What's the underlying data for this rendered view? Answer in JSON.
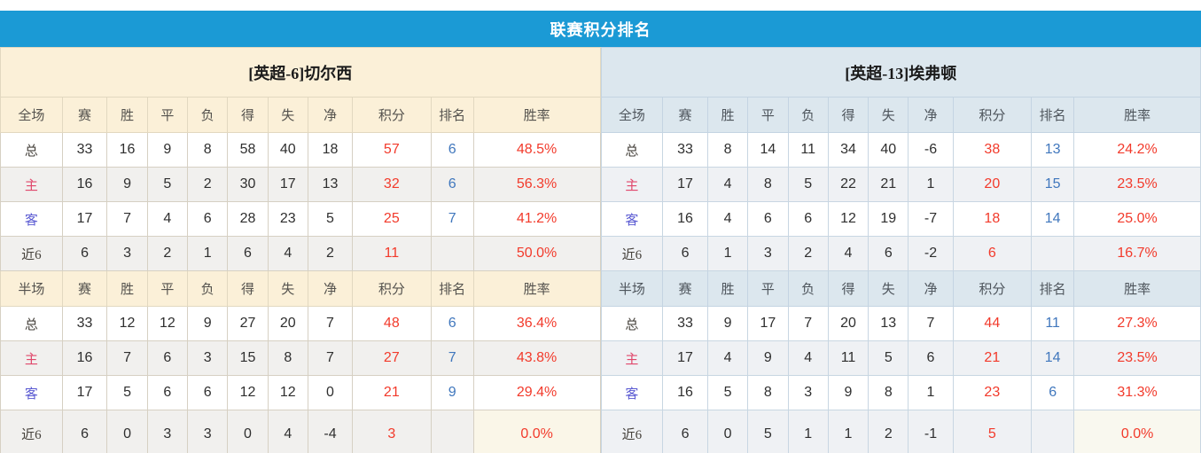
{
  "title": "联赛积分排名",
  "columns": [
    "赛",
    "胜",
    "平",
    "负",
    "得",
    "失",
    "净",
    "积分",
    "排名",
    "胜率"
  ],
  "colors": {
    "accent_blue": "#1b9ad5",
    "left_team_header_bg": "#fbf0d8",
    "right_team_header_bg": "#dce7ee",
    "points_red": "#f23a2b",
    "rank_blue": "#4077bd",
    "home_label_red": "#e0476b",
    "away_label_blue": "#5a5ad2"
  },
  "teams": [
    {
      "name": "[英超-6]切尔西",
      "sections": [
        {
          "title": "全场",
          "rows": [
            [
              "总",
              "33",
              "16",
              "9",
              "8",
              "58",
              "40",
              "18",
              "57",
              "6",
              "48.5%"
            ],
            [
              "主",
              "16",
              "9",
              "5",
              "2",
              "30",
              "17",
              "13",
              "32",
              "6",
              "56.3%"
            ],
            [
              "客",
              "17",
              "7",
              "4",
              "6",
              "28",
              "23",
              "5",
              "25",
              "7",
              "41.2%"
            ],
            [
              "近6",
              "6",
              "3",
              "2",
              "1",
              "6",
              "4",
              "2",
              "11",
              "",
              "50.0%"
            ]
          ]
        },
        {
          "title": "半场",
          "rows": [
            [
              "总",
              "33",
              "12",
              "12",
              "9",
              "27",
              "20",
              "7",
              "48",
              "6",
              "36.4%"
            ],
            [
              "主",
              "16",
              "7",
              "6",
              "3",
              "15",
              "8",
              "7",
              "27",
              "7",
              "43.8%"
            ],
            [
              "客",
              "17",
              "5",
              "6",
              "6",
              "12",
              "12",
              "0",
              "21",
              "9",
              "29.4%"
            ],
            [
              "近6",
              "6",
              "0",
              "3",
              "3",
              "0",
              "4",
              "-4",
              "3",
              "",
              "0.0%"
            ]
          ]
        }
      ]
    },
    {
      "name": "[英超-13]埃弗顿",
      "sections": [
        {
          "title": "全场",
          "rows": [
            [
              "总",
              "33",
              "8",
              "14",
              "11",
              "34",
              "40",
              "-6",
              "38",
              "13",
              "24.2%"
            ],
            [
              "主",
              "17",
              "4",
              "8",
              "5",
              "22",
              "21",
              "1",
              "20",
              "15",
              "23.5%"
            ],
            [
              "客",
              "16",
              "4",
              "6",
              "6",
              "12",
              "19",
              "-7",
              "18",
              "14",
              "25.0%"
            ],
            [
              "近6",
              "6",
              "1",
              "3",
              "2",
              "4",
              "6",
              "-2",
              "6",
              "",
              "16.7%"
            ]
          ]
        },
        {
          "title": "半场",
          "rows": [
            [
              "总",
              "33",
              "9",
              "17",
              "7",
              "20",
              "13",
              "7",
              "44",
              "11",
              "27.3%"
            ],
            [
              "主",
              "17",
              "4",
              "9",
              "4",
              "11",
              "5",
              "6",
              "21",
              "14",
              "23.5%"
            ],
            [
              "客",
              "16",
              "5",
              "8",
              "3",
              "9",
              "8",
              "1",
              "23",
              "6",
              "31.3%"
            ],
            [
              "近6",
              "6",
              "0",
              "5",
              "1",
              "1",
              "2",
              "-1",
              "5",
              "",
              "0.0%"
            ]
          ]
        }
      ]
    }
  ]
}
